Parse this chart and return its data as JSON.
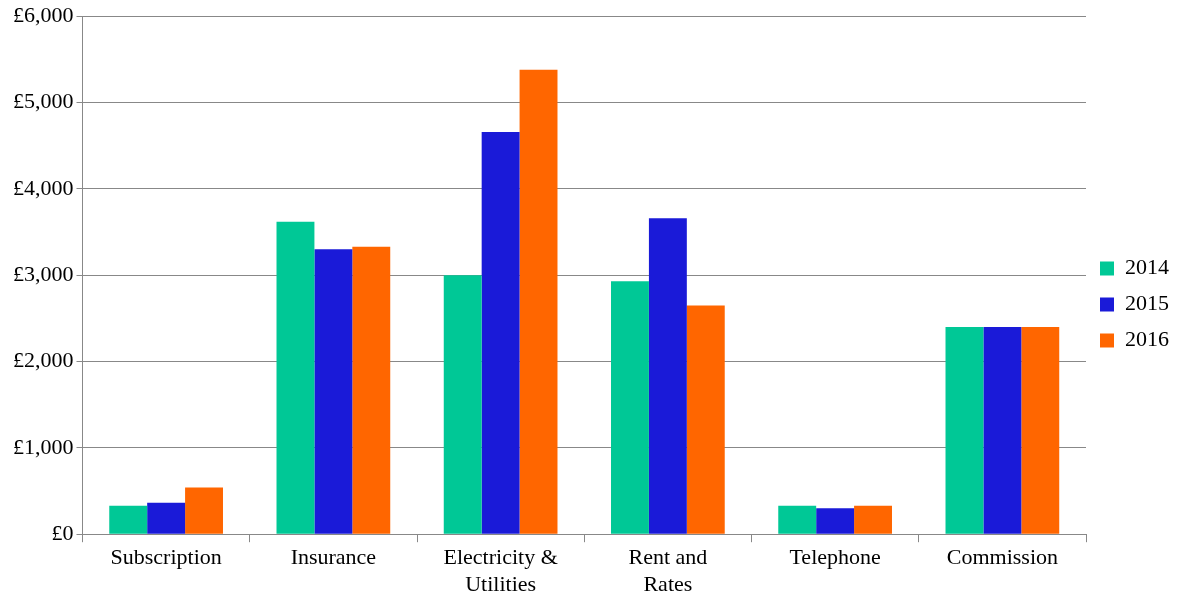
{
  "chart_data": {
    "type": "bar",
    "categories": [
      "Subscription",
      "Insurance",
      "Electricity & Utilities",
      "Rent and Rates",
      "Telephone",
      "Commission"
    ],
    "series": [
      {
        "name": "2014",
        "color": "#00c896",
        "values": [
          330,
          3620,
          3000,
          2930,
          330,
          2400
        ]
      },
      {
        "name": "2015",
        "color": "#1a1ad8",
        "values": [
          365,
          3300,
          4660,
          3660,
          300,
          2400
        ]
      },
      {
        "name": "2016",
        "color": "#ff6600",
        "values": [
          540,
          3330,
          5380,
          2650,
          330,
          2400
        ]
      }
    ],
    "ylim": [
      0,
      6000
    ],
    "yticks": [
      {
        "value": 0,
        "label": "£0"
      },
      {
        "value": 1000,
        "label": "£1,000"
      },
      {
        "value": 2000,
        "label": "£2,000"
      },
      {
        "value": 3000,
        "label": "£3,000"
      },
      {
        "value": 4000,
        "label": "£4,000"
      },
      {
        "value": 5000,
        "label": "£5,000"
      },
      {
        "value": 6000,
        "label": "£6,000"
      }
    ],
    "grid": "y",
    "legend": "right"
  }
}
